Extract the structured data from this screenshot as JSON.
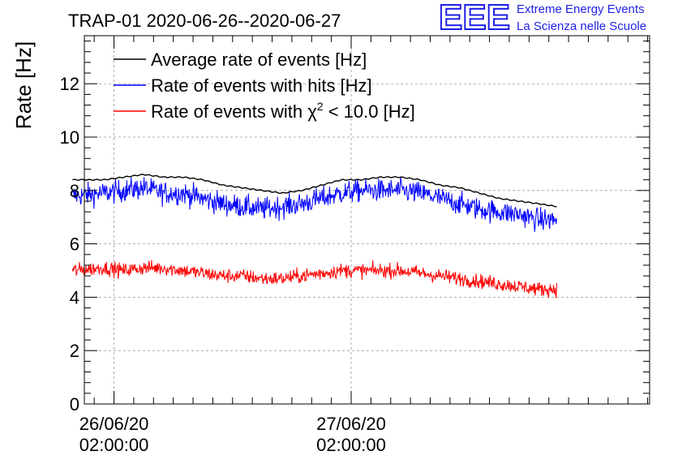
{
  "title": "TRAP-01 2020-06-26--2020-06-27",
  "logo": {
    "mark": "EEE",
    "line1": "Extreme Energy Events",
    "line2": "La Scienza nelle Scuole"
  },
  "colors": {
    "average": "#000000",
    "hits": "#0000ff",
    "chi2": "#ff0000",
    "logo": "#1f1fe6",
    "grid": "#999999"
  },
  "chart_data": {
    "type": "line",
    "title": "TRAP-01 2020-06-26--2020-06-27",
    "ylabel": "Rate [Hz]",
    "xlabel": "",
    "x_unit": "hours since 2020-06-25 23:00",
    "xlim": [
      0,
      57.2
    ],
    "ylim": [
      0,
      13.8
    ],
    "yticks": [
      0,
      2,
      4,
      6,
      8,
      10,
      12
    ],
    "ytick_labels": [
      "0",
      "2",
      "4",
      "6",
      "8",
      "10",
      "12"
    ],
    "xticks": [
      3,
      27
    ],
    "xtick_labels": [
      [
        "26/06/20",
        "02:00:00"
      ],
      [
        "27/06/20",
        "02:00:00"
      ]
    ],
    "x_minor_step": 2,
    "grid": true,
    "legend": {
      "placement": "top-left",
      "entries": [
        {
          "label": "Average rate of events [Hz]",
          "series": "average"
        },
        {
          "label": "Rate of events with hits [Hz]",
          "series": "hits"
        },
        {
          "label_prefix": "Rate of events with ",
          "label_symbol": "χ",
          "label_sup": "2",
          "label_suffix": " < 10.0 [Hz]",
          "series": "chi2"
        }
      ]
    },
    "series": [
      {
        "key": "average",
        "name": "Average rate of events [Hz]",
        "x": [
          -1.2,
          2,
          4,
          6,
          8,
          10,
          12,
          14,
          16,
          18,
          20,
          22,
          24,
          26,
          28,
          30,
          32,
          34,
          36,
          38,
          40,
          42,
          44,
          46,
          47.8
        ],
        "values": [
          8.4,
          8.4,
          8.5,
          8.6,
          8.5,
          8.5,
          8.4,
          8.2,
          8.1,
          8.0,
          7.9,
          8.0,
          8.2,
          8.4,
          8.4,
          8.5,
          8.5,
          8.4,
          8.2,
          8.1,
          7.9,
          7.7,
          7.6,
          7.5,
          7.4
        ]
      },
      {
        "key": "hits",
        "name": "Rate of events with hits [Hz]",
        "noise": 0.55,
        "x": [
          -1.2,
          2,
          4,
          6,
          8,
          10,
          12,
          14,
          16,
          18,
          20,
          22,
          24,
          26,
          28,
          30,
          32,
          34,
          36,
          38,
          40,
          42,
          44,
          46,
          47.8
        ],
        "values": [
          7.8,
          7.9,
          8.0,
          8.1,
          7.9,
          7.9,
          7.7,
          7.5,
          7.4,
          7.3,
          7.4,
          7.5,
          7.7,
          7.9,
          8.0,
          8.0,
          8.0,
          7.9,
          7.7,
          7.5,
          7.3,
          7.2,
          7.1,
          6.9,
          6.9
        ]
      },
      {
        "key": "chi2",
        "name": "Rate of events with χ2 < 10.0 [Hz]",
        "noise": 0.35,
        "x": [
          -1.2,
          2,
          4,
          6,
          8,
          10,
          12,
          14,
          16,
          18,
          20,
          22,
          24,
          26,
          28,
          30,
          32,
          34,
          36,
          38,
          40,
          42,
          44,
          46,
          47.8
        ],
        "values": [
          5.0,
          5.1,
          5.0,
          5.1,
          5.1,
          5.0,
          4.9,
          4.8,
          4.8,
          4.7,
          4.7,
          4.8,
          4.9,
          5.0,
          5.0,
          5.0,
          5.0,
          4.9,
          4.8,
          4.7,
          4.6,
          4.5,
          4.4,
          4.3,
          4.3
        ]
      }
    ]
  }
}
